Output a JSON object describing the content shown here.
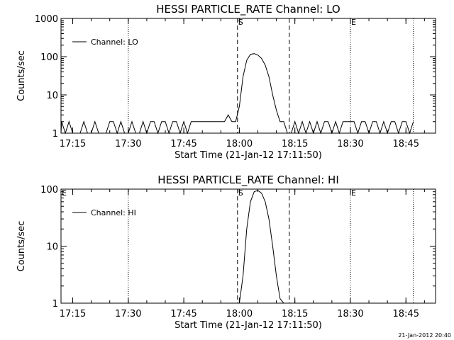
{
  "chart_data": [
    {
      "type": "line",
      "title": "HESSI PARTICLE_RATE Channel: LO",
      "xlabel": "Start Time (21-Jan-12 17:11:50)",
      "ylabel": "Counts/sec",
      "yscale": "log",
      "xlim": [
        "17:11:50",
        "18:53:00"
      ],
      "ylim": [
        1,
        1000
      ],
      "xticks": [
        "17:15",
        "17:30",
        "17:45",
        "18:00",
        "18:15",
        "18:30",
        "18:45"
      ],
      "yticks": [
        "1",
        "10",
        "100",
        "1000"
      ],
      "legend": {
        "entry": "Channel: LO",
        "placement": "top-left"
      },
      "vlines_dashed": [
        "17:59:30",
        "18:13:30"
      ],
      "vlines_dotted": [
        "17:30",
        "18:30",
        "18:47"
      ],
      "markers": [
        {
          "label": "S",
          "time": "17:59:30"
        },
        {
          "label": "E",
          "time": "18:30"
        }
      ],
      "series": [
        {
          "name": "Channel: LO",
          "x": [
            "17:11:50",
            "17:12",
            "17:13",
            "17:14",
            "17:15",
            "17:16",
            "17:17",
            "17:18",
            "17:19",
            "17:20",
            "17:21",
            "17:22",
            "17:23",
            "17:24",
            "17:25",
            "17:26",
            "17:27",
            "17:28",
            "17:29",
            "17:30",
            "17:31",
            "17:32",
            "17:33",
            "17:34",
            "17:35",
            "17:36",
            "17:37",
            "17:38",
            "17:39",
            "17:40",
            "17:41",
            "17:42",
            "17:43",
            "17:44",
            "17:45",
            "17:46",
            "17:47",
            "17:48",
            "17:49",
            "17:50",
            "17:51",
            "17:52",
            "17:53",
            "17:54",
            "17:55",
            "17:56",
            "17:57",
            "17:58",
            "17:59",
            "18:00",
            "18:01",
            "18:02",
            "18:03",
            "18:04",
            "18:05",
            "18:06",
            "18:07",
            "18:08",
            "18:09",
            "18:10",
            "18:11",
            "18:12",
            "18:13",
            "18:14",
            "18:15",
            "18:16",
            "18:17",
            "18:18",
            "18:19",
            "18:20",
            "18:21",
            "18:22",
            "18:23",
            "18:24",
            "18:25",
            "18:26",
            "18:27",
            "18:28",
            "18:29",
            "18:30",
            "18:31",
            "18:32",
            "18:33",
            "18:34",
            "18:35",
            "18:36",
            "18:37",
            "18:38",
            "18:39",
            "18:40",
            "18:41",
            "18:42",
            "18:43",
            "18:44",
            "18:45",
            "18:46",
            "18:47"
          ],
          "y": [
            1,
            2,
            1,
            2,
            1,
            1,
            1,
            2,
            1,
            1,
            2,
            1,
            1,
            1,
            2,
            2,
            1,
            2,
            1,
            1,
            2,
            1,
            1,
            2,
            1,
            2,
            2,
            1,
            2,
            2,
            1,
            2,
            2,
            1,
            2,
            1,
            2,
            2,
            2,
            2,
            2,
            2,
            2,
            2,
            2,
            2,
            3,
            2,
            2,
            5,
            30,
            80,
            115,
            120,
            110,
            90,
            60,
            30,
            10,
            4,
            2,
            2,
            1,
            1,
            2,
            1,
            2,
            1,
            2,
            1,
            2,
            1,
            2,
            2,
            1,
            2,
            1,
            2,
            2,
            2,
            2,
            1,
            2,
            2,
            1,
            2,
            2,
            1,
            2,
            1,
            2,
            2,
            1,
            2,
            2,
            1,
            2
          ]
        }
      ]
    },
    {
      "type": "line",
      "title": "HESSI PARTICLE_RATE Channel: HI",
      "xlabel": "Start Time (21-Jan-12 17:11:50)",
      "ylabel": "Counts/sec",
      "yscale": "log",
      "xlim": [
        "17:11:50",
        "18:53:00"
      ],
      "ylim": [
        1,
        100
      ],
      "xticks": [
        "17:15",
        "17:30",
        "17:45",
        "18:00",
        "18:15",
        "18:30",
        "18:45"
      ],
      "yticks": [
        "1",
        "10",
        "100"
      ],
      "legend": {
        "entry": "Channel: HI",
        "placement": "top-left"
      },
      "vlines_dashed": [
        "17:59:30",
        "18:13:30"
      ],
      "vlines_dotted": [
        "17:30",
        "18:30",
        "18:47"
      ],
      "markers": [
        {
          "label": "E",
          "time": "17:11:50"
        },
        {
          "label": "S",
          "time": "17:59:30"
        },
        {
          "label": "E",
          "time": "18:30"
        }
      ],
      "series": [
        {
          "name": "Channel: HI",
          "x": [
            "18:00",
            "18:01",
            "18:02",
            "18:03",
            "18:04",
            "18:05",
            "18:06",
            "18:07",
            "18:08",
            "18:09",
            "18:10",
            "18:11",
            "18:12"
          ],
          "y": [
            1,
            3,
            20,
            60,
            90,
            95,
            85,
            60,
            30,
            10,
            3,
            1.2,
            1
          ]
        }
      ]
    }
  ],
  "timestamp": "21-Jan-2012 20:40"
}
